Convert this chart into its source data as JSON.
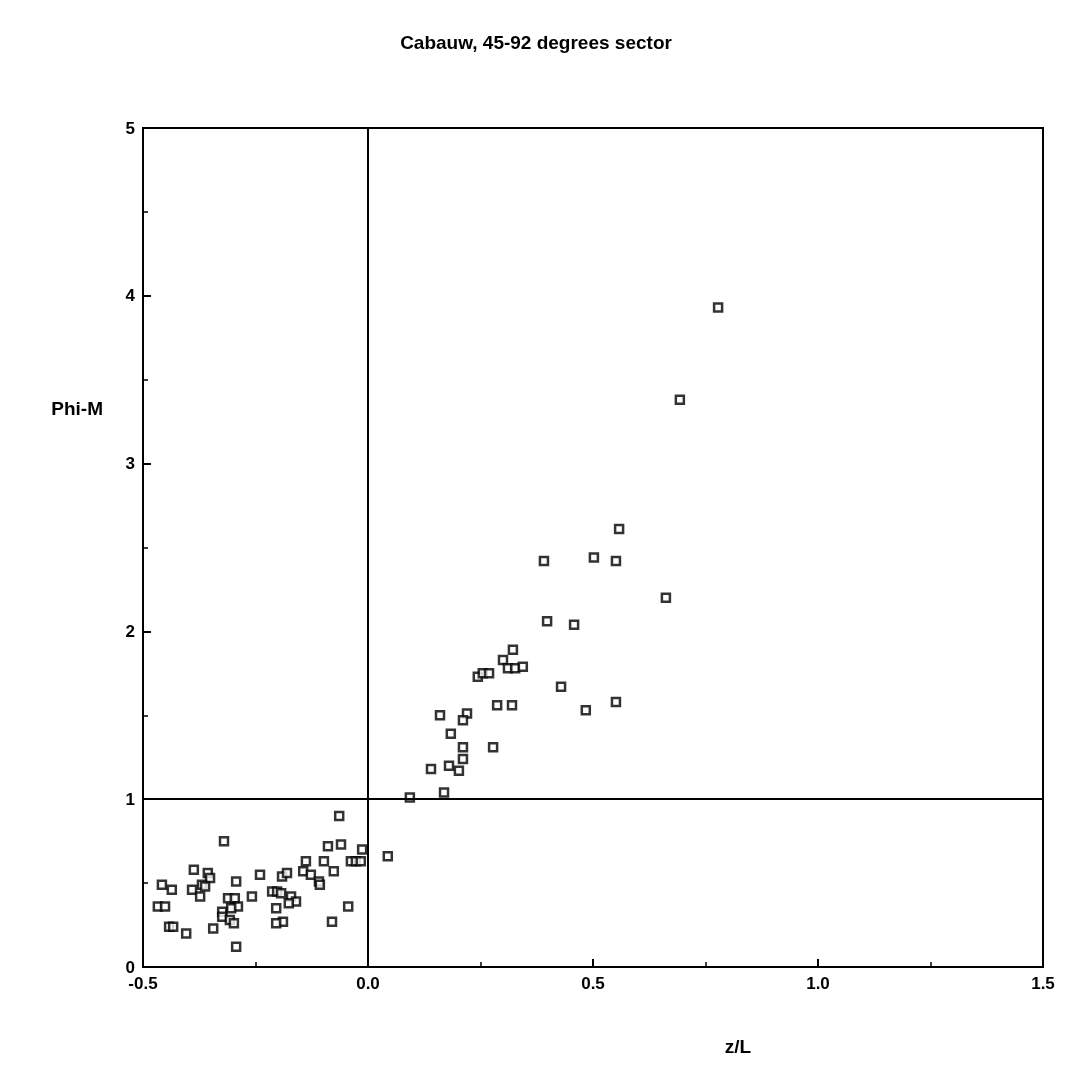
{
  "chart_data": {
    "type": "scatter",
    "title": "Cabauw, 45-92 degrees sector",
    "xlabel": "z/L",
    "ylabel": "Phi-M",
    "xlim": [
      -0.5,
      1.5
    ],
    "ylim": [
      0,
      5
    ],
    "xticks": [
      -0.5,
      {
        "value": 0,
        "label": "0.0"
      },
      0.5,
      {
        "value": 1,
        "label": "1.0"
      },
      1.5
    ],
    "yticks": [
      0,
      1,
      2,
      3,
      4,
      5
    ],
    "grid": false,
    "marker": "square",
    "ref_lines": [
      {
        "axis": "x",
        "value": 0,
        "label": null
      },
      {
        "axis": "y",
        "value": 1,
        "label": null
      }
    ],
    "series": [
      {
        "color": "#000000",
        "x": [
          0.778,
          0.693,
          0.558,
          0.502,
          0.391,
          0.551,
          0.662,
          0.398,
          0.458,
          0.322,
          0.3,
          0.311,
          0.327,
          0.344,
          0.244,
          0.255,
          0.269,
          0.429,
          0.287,
          0.32,
          0.484,
          0.551,
          0.16,
          0.22,
          0.211,
          0.184,
          0.211,
          0.278,
          0.211,
          0.14,
          0.18,
          0.202,
          0.169,
          0.093,
          -0.064,
          -0.32,
          -0.089,
          -0.06,
          -0.013,
          -0.138,
          -0.098,
          -0.038,
          -0.027,
          -0.016,
          0.044,
          -0.387,
          -0.356,
          -0.351,
          -0.24,
          -0.191,
          -0.18,
          -0.144,
          -0.127,
          -0.076,
          -0.109,
          -0.107,
          -0.293,
          -0.458,
          -0.436,
          -0.391,
          -0.369,
          -0.362,
          -0.373,
          -0.258,
          -0.311,
          -0.296,
          -0.213,
          -0.202,
          -0.193,
          -0.171,
          -0.16,
          -0.176,
          -0.289,
          -0.304,
          -0.204,
          -0.044,
          -0.467,
          -0.451,
          -0.324,
          -0.324,
          -0.307,
          -0.298,
          -0.189,
          -0.204,
          -0.08,
          -0.442,
          -0.433,
          -0.344,
          -0.404,
          -0.293
        ],
        "values": [
          3.93,
          3.38,
          2.61,
          2.44,
          2.42,
          2.42,
          2.2,
          2.06,
          2.04,
          1.89,
          1.83,
          1.78,
          1.78,
          1.79,
          1.73,
          1.75,
          1.75,
          1.67,
          1.56,
          1.56,
          1.53,
          1.58,
          1.5,
          1.51,
          1.47,
          1.39,
          1.31,
          1.31,
          1.24,
          1.18,
          1.2,
          1.17,
          1.04,
          1.01,
          0.9,
          0.75,
          0.72,
          0.73,
          0.7,
          0.63,
          0.63,
          0.63,
          0.63,
          0.63,
          0.66,
          0.58,
          0.56,
          0.53,
          0.55,
          0.54,
          0.56,
          0.57,
          0.55,
          0.57,
          0.51,
          0.49,
          0.51,
          0.49,
          0.46,
          0.46,
          0.49,
          0.48,
          0.42,
          0.42,
          0.41,
          0.41,
          0.45,
          0.45,
          0.44,
          0.42,
          0.39,
          0.38,
          0.36,
          0.35,
          0.35,
          0.36,
          0.36,
          0.36,
          0.33,
          0.3,
          0.28,
          0.26,
          0.27,
          0.26,
          0.27,
          0.24,
          0.24,
          0.23,
          0.2,
          0.12
        ]
      }
    ]
  }
}
